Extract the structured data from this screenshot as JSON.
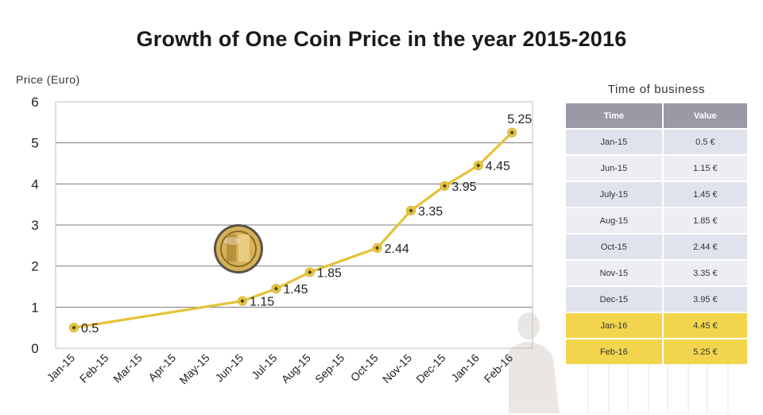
{
  "title": "Growth of One Coin Price in the year 2015-2016",
  "colors": {
    "line": "#e8c53a",
    "marker": "#c59a12",
    "table_header": "#9a9aa6",
    "table_highlight": "#f2d54d"
  },
  "chart_data": {
    "type": "line",
    "title": "Growth of One Coin Price in the year 2015-2016",
    "ylabel": "Price  (Euro)",
    "xlabel": "",
    "ylim": [
      0,
      6
    ],
    "yticks": [
      "0",
      "1",
      "2",
      "3",
      "4",
      "5",
      "6"
    ],
    "grid": true,
    "categories": [
      "Jan-15",
      "Feb-15",
      "Mar-15",
      "Apr-15",
      "May-15",
      "Jun-15",
      "Jul-15",
      "Aug-15",
      "Sep-15",
      "Oct-15",
      "Nov-15",
      "Dec-15",
      "Jan-16",
      "Feb-16"
    ],
    "series": [
      {
        "points": [
          {
            "x": 0,
            "y": 0.5,
            "label": "0.5"
          },
          {
            "x": 5,
            "y": 1.15,
            "label": "1.15"
          },
          {
            "x": 6,
            "y": 1.45,
            "label": "1.45"
          },
          {
            "x": 7,
            "y": 1.85,
            "label": "1.85"
          },
          {
            "x": 9,
            "y": 2.44,
            "label": "2.44"
          },
          {
            "x": 10,
            "y": 3.35,
            "label": "3.35"
          },
          {
            "x": 11,
            "y": 3.95,
            "label": "3.95"
          },
          {
            "x": 12,
            "y": 4.45,
            "label": "4.45"
          },
          {
            "x": 13,
            "y": 5.25,
            "label": "5.25"
          }
        ]
      }
    ]
  },
  "table": {
    "title": "Time  of  business",
    "headers": [
      "Time",
      "Value"
    ],
    "rows": [
      {
        "time": "Jan-15",
        "value": "0.5 €"
      },
      {
        "time": "Jun-15",
        "value": "1.15 €"
      },
      {
        "time": "July-15",
        "value": "1.45 €"
      },
      {
        "time": "Aug-15",
        "value": "1.85 €"
      },
      {
        "time": "Oct-15",
        "value": "2.44 €"
      },
      {
        "time": "Nov-15",
        "value": "3.35 €"
      },
      {
        "time": "Dec-15",
        "value": "3.95 €"
      },
      {
        "time": "Jan-16",
        "value": "4.45 €"
      },
      {
        "time": "Feb-16",
        "value": "5.25 €"
      }
    ]
  },
  "decorations": {
    "coin": "coin-logo-icon",
    "background": "businessman-silhouette-icon"
  }
}
